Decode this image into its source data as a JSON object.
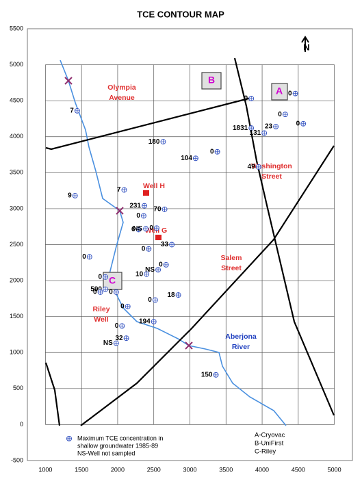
{
  "chart_data": {
    "type": "scatter",
    "title": "TCE CONTOUR MAP",
    "xlim": [
      750,
      5250
    ],
    "ylim": [
      -500,
      5500
    ],
    "xticks": [
      1000,
      1500,
      2000,
      2500,
      3000,
      3500,
      4000,
      4500,
      5000
    ],
    "yticks": [
      -500,
      0,
      500,
      1000,
      1500,
      2000,
      2500,
      3000,
      3500,
      4000,
      4500,
      5000,
      5500
    ],
    "grid": true,
    "color": "#3050c0",
    "x": [
      1440,
      1410,
      1610,
      1830,
      1830,
      1760,
      1980,
      2140,
      2060,
      2120,
      1980,
      2500,
      2520,
      2840,
      2670,
      2560,
      2400,
      2430,
      2750,
      2540,
      2290,
      2390,
      2360,
      2370,
      2650,
      2090,
      2630,
      3080,
      3380,
      3950,
      3850,
      4030,
      4190,
      3850,
      4460,
      4320,
      4570,
      3360
    ],
    "y": [
      4360,
      3180,
      2330,
      2050,
      1880,
      1840,
      1840,
      1640,
      1370,
      1200,
      1130,
      1430,
      1730,
      1800,
      2220,
      2150,
      2090,
      2440,
      2500,
      2730,
      2710,
      2720,
      2900,
      3040,
      2990,
      3260,
      3930,
      3700,
      3790,
      3580,
      4120,
      4050,
      4140,
      4530,
      4600,
      4310,
      4180,
      690
    ],
    "labels": [
      "7",
      "9",
      "0",
      "0",
      "590",
      "0",
      "0",
      "0",
      "0",
      "32",
      "NS",
      "194",
      "0",
      "18",
      "0",
      "NS",
      "10",
      "0",
      "33",
      "0",
      "6",
      "NS",
      "0",
      "231",
      "70",
      "7",
      "180",
      "104",
      "0",
      "49",
      "1831",
      "131",
      "23",
      "0",
      "0",
      "0",
      "0",
      "150"
    ],
    "annotations": [
      "N",
      "A",
      "B",
      "C",
      "Olympia",
      "Avenue",
      "Washington",
      "Street",
      "Salem",
      "Street",
      "Well H",
      "Well G",
      "Riley",
      "Well",
      "Aberjona",
      "River"
    ],
    "legend_text": [
      "Maximum TCE concentration in",
      "shallow groundwater 1985-89",
      "NS-Well not sampled",
      "A-Cryovac",
      "B-UniFirst",
      "C-Riley"
    ]
  }
}
